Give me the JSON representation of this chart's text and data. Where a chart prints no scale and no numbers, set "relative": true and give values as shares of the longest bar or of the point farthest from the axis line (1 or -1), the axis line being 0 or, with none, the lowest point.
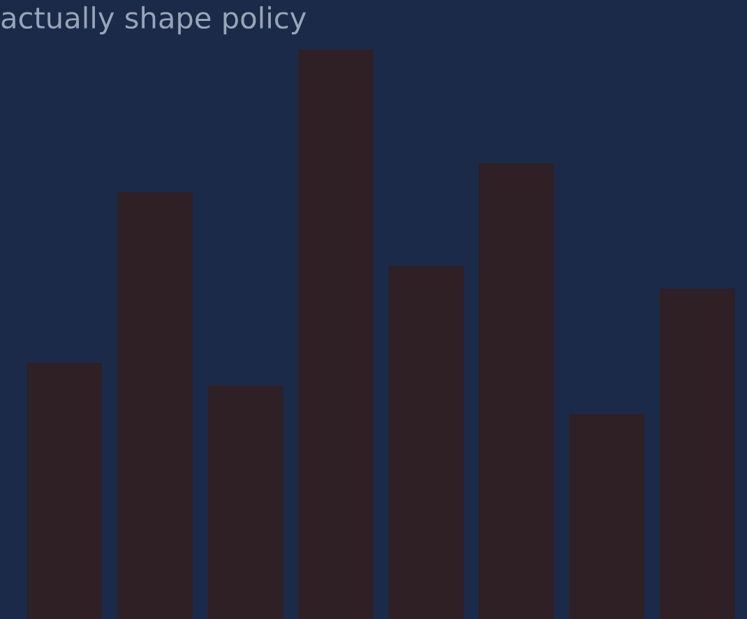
{
  "chart_data": {
    "type": "bar",
    "relative": true,
    "title": "actually shape policy",
    "categories": [
      null,
      null,
      null,
      null,
      null,
      null,
      null,
      null
    ],
    "values": [
      0.45,
      0.75,
      0.41,
      1,
      0.62,
      0.8,
      0.36,
      0.58
    ],
    "color": "#2e2024"
  }
}
